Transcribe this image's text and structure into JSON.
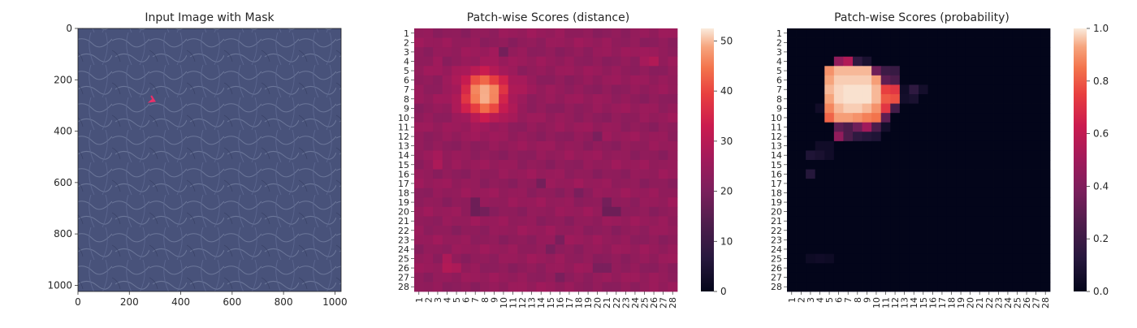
{
  "panels": [
    {
      "id": "input",
      "title": "Input Image with Mask",
      "x_ticks": [
        0,
        200,
        400,
        600,
        800,
        1000
      ],
      "y_ticks": [
        0,
        200,
        400,
        600,
        800,
        1000
      ],
      "extent": [
        0,
        1024
      ],
      "texture_color": "#48527a",
      "mask_color": "#e8306a",
      "mask_points": [
        [
          285,
          262
        ],
        [
          292,
          276
        ],
        [
          281,
          285
        ],
        [
          298,
          283
        ]
      ]
    },
    {
      "id": "distance",
      "title": "Patch-wise Scores (distance)",
      "colorbar_ticks": [
        0,
        10,
        20,
        30,
        40,
        50
      ]
    },
    {
      "id": "probability",
      "title": "Patch-wise Scores (probability)",
      "colorbar_ticks": [
        0.0,
        0.2,
        0.4,
        0.6,
        0.8,
        1.0
      ]
    }
  ],
  "colormap": "rocket",
  "chart_data": [
    {
      "type": "heatmap",
      "title": "Patch-wise Scores (distance)",
      "x": [
        "1",
        "2",
        "3",
        "4",
        "5",
        "6",
        "7",
        "8",
        "9",
        "10",
        "11",
        "12",
        "13",
        "14",
        "15",
        "16",
        "17",
        "18",
        "19",
        "20",
        "21",
        "22",
        "23",
        "24",
        "25",
        "26",
        "27",
        "28"
      ],
      "y": [
        "1",
        "2",
        "3",
        "4",
        "5",
        "6",
        "7",
        "8",
        "9",
        "10",
        "11",
        "12",
        "13",
        "14",
        "15",
        "16",
        "17",
        "18",
        "19",
        "20",
        "21",
        "22",
        "23",
        "24",
        "25",
        "26",
        "27",
        "28"
      ],
      "vmin": 0,
      "vmax": 52.5,
      "base": 24,
      "hotspot": {
        "center_col": 8,
        "center_row": 7.5,
        "peak": 52
      },
      "bright_cells": [
        [
          4,
          25,
          27
        ],
        [
          4,
          26,
          29
        ],
        [
          3,
          25,
          26
        ],
        [
          6,
          12,
          27
        ],
        [
          7,
          12,
          28
        ],
        [
          14,
          3,
          27
        ],
        [
          15,
          3,
          28
        ],
        [
          25,
          4,
          28
        ],
        [
          26,
          4,
          29
        ],
        [
          26,
          5,
          28
        ],
        [
          4,
          3,
          26
        ],
        [
          5,
          3,
          26
        ]
      ],
      "dark_cells": [
        [
          19,
          7,
          18
        ],
        [
          20,
          7,
          18
        ],
        [
          20,
          8,
          19
        ],
        [
          19,
          21,
          19
        ],
        [
          20,
          21,
          18
        ],
        [
          20,
          22,
          18
        ],
        [
          17,
          14,
          19
        ],
        [
          3,
          10,
          19
        ],
        [
          12,
          20,
          20
        ],
        [
          26,
          20,
          20
        ],
        [
          26,
          21,
          20
        ],
        [
          23,
          16,
          20
        ],
        [
          24,
          15,
          20
        ],
        [
          27,
          16,
          20
        ],
        [
          18,
          18,
          20
        ]
      ]
    },
    {
      "type": "heatmap",
      "title": "Patch-wise Scores (probability)",
      "x": [
        "1",
        "2",
        "3",
        "4",
        "5",
        "6",
        "7",
        "8",
        "9",
        "10",
        "11",
        "12",
        "13",
        "14",
        "15",
        "16",
        "17",
        "18",
        "19",
        "20",
        "21",
        "22",
        "23",
        "24",
        "25",
        "26",
        "27",
        "28"
      ],
      "y": [
        "1",
        "2",
        "3",
        "4",
        "5",
        "6",
        "7",
        "8",
        "9",
        "10",
        "11",
        "12",
        "13",
        "14",
        "15",
        "16",
        "17",
        "18",
        "19",
        "20",
        "21",
        "22",
        "23",
        "24",
        "25",
        "26",
        "27",
        "28"
      ],
      "vmin": 0,
      "vmax": 1,
      "cells": [
        [
          4,
          6,
          0.45
        ],
        [
          4,
          7,
          0.55
        ],
        [
          4,
          8,
          0.15
        ],
        [
          4,
          9,
          0.08
        ],
        [
          5,
          5,
          0.9
        ],
        [
          5,
          6,
          0.95
        ],
        [
          5,
          7,
          0.95
        ],
        [
          5,
          8,
          0.95
        ],
        [
          5,
          9,
          0.95
        ],
        [
          5,
          10,
          0.35
        ],
        [
          5,
          11,
          0.2
        ],
        [
          5,
          12,
          0.18
        ],
        [
          6,
          5,
          0.93
        ],
        [
          6,
          6,
          0.97
        ],
        [
          6,
          7,
          0.97
        ],
        [
          6,
          8,
          0.97
        ],
        [
          6,
          9,
          0.97
        ],
        [
          6,
          10,
          0.92
        ],
        [
          6,
          11,
          0.3
        ],
        [
          6,
          12,
          0.25
        ],
        [
          7,
          5,
          0.95
        ],
        [
          7,
          6,
          0.98
        ],
        [
          7,
          7,
          0.99
        ],
        [
          7,
          8,
          0.99
        ],
        [
          7,
          9,
          0.99
        ],
        [
          7,
          10,
          0.95
        ],
        [
          7,
          11,
          0.75
        ],
        [
          7,
          12,
          0.72
        ],
        [
          7,
          13,
          0.05
        ],
        [
          7,
          14,
          0.15
        ],
        [
          7,
          15,
          0.06
        ],
        [
          8,
          5,
          0.93
        ],
        [
          8,
          6,
          0.98
        ],
        [
          8,
          7,
          0.99
        ],
        [
          8,
          8,
          0.99
        ],
        [
          8,
          9,
          0.99
        ],
        [
          8,
          10,
          0.95
        ],
        [
          8,
          11,
          0.8
        ],
        [
          8,
          12,
          0.78
        ],
        [
          8,
          13,
          0.06
        ],
        [
          8,
          14,
          0.08
        ],
        [
          9,
          4,
          0.05
        ],
        [
          9,
          5,
          0.88
        ],
        [
          9,
          6,
          0.95
        ],
        [
          9,
          7,
          0.97
        ],
        [
          9,
          8,
          0.97
        ],
        [
          9,
          9,
          0.95
        ],
        [
          9,
          10,
          0.9
        ],
        [
          9,
          11,
          0.72
        ],
        [
          9,
          12,
          0.22
        ],
        [
          10,
          5,
          0.82
        ],
        [
          10,
          6,
          0.92
        ],
        [
          10,
          7,
          0.92
        ],
        [
          10,
          8,
          0.9
        ],
        [
          10,
          9,
          0.87
        ],
        [
          10,
          10,
          0.85
        ],
        [
          10,
          11,
          0.3
        ],
        [
          11,
          6,
          0.3
        ],
        [
          11,
          7,
          0.25
        ],
        [
          11,
          8,
          0.35
        ],
        [
          11,
          9,
          0.5
        ],
        [
          11,
          10,
          0.25
        ],
        [
          11,
          11,
          0.06
        ],
        [
          12,
          6,
          0.45
        ],
        [
          12,
          7,
          0.25
        ],
        [
          12,
          8,
          0.15
        ],
        [
          12,
          9,
          0.12
        ],
        [
          12,
          10,
          0.1
        ],
        [
          13,
          4,
          0.05
        ],
        [
          13,
          5,
          0.05
        ],
        [
          14,
          3,
          0.1
        ],
        [
          14,
          4,
          0.08
        ],
        [
          14,
          5,
          0.05
        ],
        [
          16,
          3,
          0.12
        ],
        [
          25,
          3,
          0.04
        ],
        [
          25,
          4,
          0.05
        ],
        [
          25,
          5,
          0.04
        ]
      ]
    }
  ]
}
